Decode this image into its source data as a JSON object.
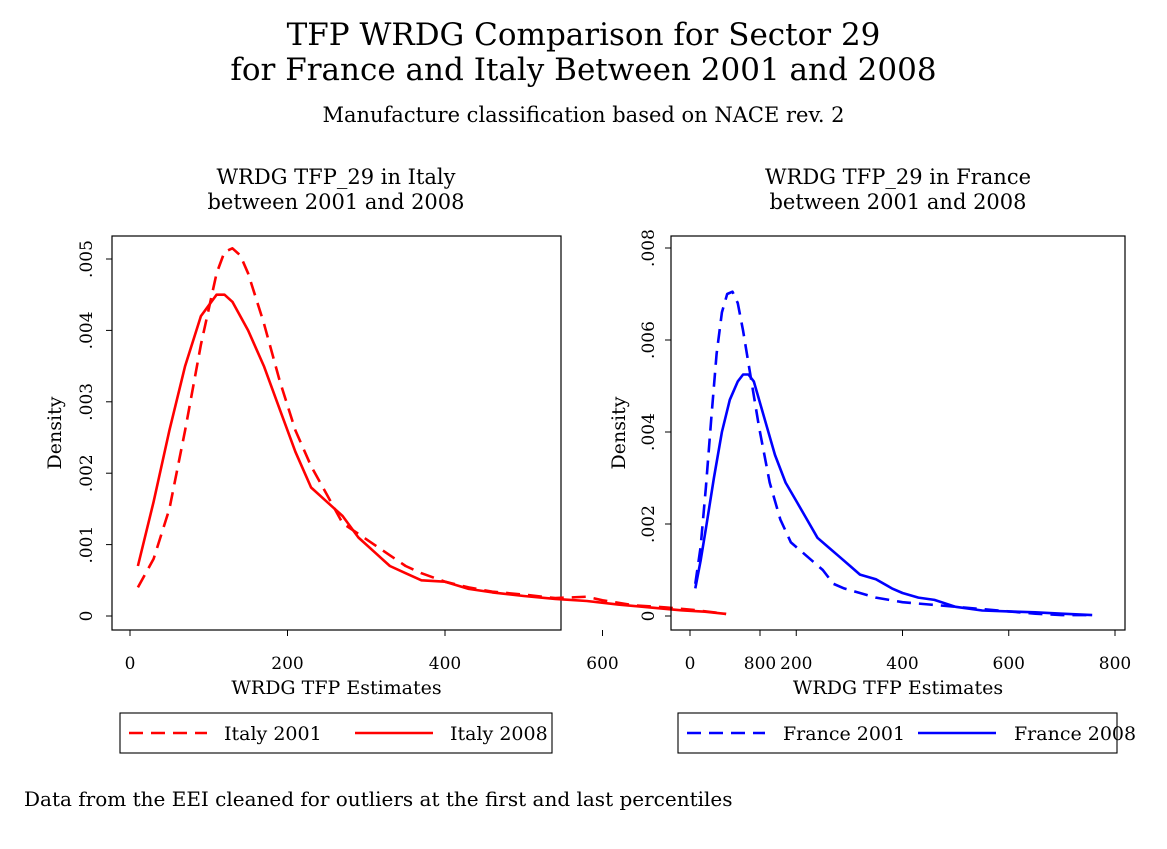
{
  "title_line1": "TFP WRDG Comparison for Sector 29",
  "title_line2": "for France and Italy Between 2001 and 2008",
  "subtitle": "Manufacture classification based on NACE rev. 2",
  "note": "Data from the EEI cleaned for outliers at the first and last percentiles",
  "chart_data": [
    {
      "type": "line",
      "title": [
        "WRDG TFP_29 in Italy",
        "between 2001 and 2008"
      ],
      "xlabel": "WRDG TFP Estimates",
      "ylabel": "Density",
      "xlim": [
        0,
        800
      ],
      "ylim": [
        0,
        0.005
      ],
      "xticks": [
        0,
        200,
        400,
        600,
        800
      ],
      "xtick_labels": [
        "0",
        "200",
        "400",
        "600",
        "800"
      ],
      "yticks": [
        0,
        0.001,
        0.002,
        0.003,
        0.004,
        0.005
      ],
      "ytick_labels": [
        "0",
        ".001",
        ".002",
        ".003",
        ".004",
        ".005"
      ],
      "grid": false,
      "legend_position": "bottom",
      "series": [
        {
          "name": "Italy 2001",
          "color": "#ff0000",
          "dash": "dashed",
          "x": [
            10,
            30,
            50,
            70,
            90,
            110,
            120,
            130,
            140,
            150,
            170,
            190,
            210,
            230,
            250,
            270,
            290,
            310,
            330,
            350,
            370,
            400,
            430,
            460,
            500,
            540,
            580,
            600,
            640,
            680,
            720,
            757
          ],
          "y": [
            0.0004,
            0.0008,
            0.0015,
            0.0026,
            0.0038,
            0.0048,
            0.0051,
            0.00515,
            0.00505,
            0.0048,
            0.0041,
            0.0033,
            0.0026,
            0.0021,
            0.0017,
            0.0013,
            0.00115,
            0.001,
            0.00085,
            0.0007,
            0.0006,
            0.00048,
            0.0004,
            0.00034,
            0.0003,
            0.00025,
            0.00027,
            0.00022,
            0.00015,
            0.00012,
            8e-05,
            3e-05
          ]
        },
        {
          "name": "Italy 2008",
          "color": "#ff0000",
          "dash": "solid",
          "x": [
            10,
            30,
            50,
            70,
            90,
            110,
            120,
            130,
            150,
            170,
            190,
            210,
            230,
            250,
            270,
            290,
            310,
            330,
            350,
            370,
            400,
            430,
            460,
            500,
            540,
            580,
            620,
            660,
            700,
            730,
            757
          ],
          "y": [
            0.0007,
            0.0016,
            0.0026,
            0.0035,
            0.0042,
            0.0045,
            0.0045,
            0.0044,
            0.004,
            0.0035,
            0.0029,
            0.0023,
            0.0018,
            0.0016,
            0.0014,
            0.0011,
            0.0009,
            0.0007,
            0.0006,
            0.0005,
            0.00048,
            0.00038,
            0.00033,
            0.00028,
            0.00024,
            0.00021,
            0.00016,
            0.00012,
            8e-05,
            6e-05,
            3e-05
          ]
        }
      ]
    },
    {
      "type": "line",
      "title": [
        "WRDG TFP_29 in France",
        "between 2001 and 2008"
      ],
      "xlabel": "WRDG TFP Estimates",
      "ylabel": "Density",
      "xlim": [
        0,
        800
      ],
      "ylim": [
        0,
        0.008
      ],
      "xticks": [
        0,
        200,
        400,
        600,
        800
      ],
      "xtick_labels": [
        "0",
        "200",
        "400",
        "600",
        "800"
      ],
      "yticks": [
        0,
        0.002,
        0.004,
        0.006,
        0.008
      ],
      "ytick_labels": [
        "0",
        ".002",
        ".004",
        ".006",
        ".008"
      ],
      "grid": false,
      "legend_position": "bottom",
      "series": [
        {
          "name": "France 2001",
          "color": "#0000ff",
          "dash": "dashed",
          "x": [
            10,
            20,
            30,
            40,
            50,
            60,
            70,
            80,
            90,
            100,
            110,
            130,
            150,
            170,
            190,
            210,
            230,
            250,
            270,
            290,
            320,
            350,
            400,
            450,
            500,
            550,
            600,
            650,
            700,
            757
          ],
          "y": [
            0.0007,
            0.0015,
            0.0028,
            0.0043,
            0.0057,
            0.0066,
            0.007,
            0.00705,
            0.0068,
            0.0062,
            0.0055,
            0.0041,
            0.0029,
            0.0021,
            0.0016,
            0.0014,
            0.0012,
            0.001,
            0.0007,
            0.0006,
            0.0005,
            0.0004,
            0.0003,
            0.00025,
            0.0002,
            0.00015,
            0.0001,
            5e-05,
            2e-05,
            2e-05
          ]
        },
        {
          "name": "France 2008",
          "color": "#0000ff",
          "dash": "solid",
          "x": [
            10,
            20,
            30,
            45,
            60,
            75,
            90,
            100,
            110,
            120,
            140,
            160,
            180,
            200,
            220,
            240,
            260,
            280,
            300,
            320,
            350,
            380,
            400,
            430,
            460,
            500,
            550,
            600,
            650,
            700,
            757
          ],
          "y": [
            0.0006,
            0.0012,
            0.0019,
            0.003,
            0.004,
            0.0047,
            0.0051,
            0.00525,
            0.00525,
            0.0051,
            0.0043,
            0.0035,
            0.0029,
            0.0025,
            0.0021,
            0.0017,
            0.0015,
            0.0013,
            0.0011,
            0.0009,
            0.0008,
            0.0006,
            0.0005,
            0.0004,
            0.00035,
            0.0002,
            0.00012,
            0.0001,
            8e-05,
            5e-05,
            2e-05
          ]
        }
      ]
    }
  ]
}
